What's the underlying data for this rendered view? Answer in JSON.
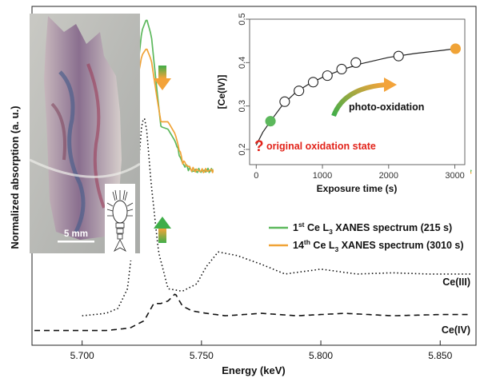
{
  "chart_data": [
    {
      "type": "line",
      "xlabel": "Energy (keV)",
      "ylabel": "Normalized absorption (a. u.)",
      "xlim": [
        5.679,
        5.865
      ],
      "x_ticks": [
        "5.700",
        "5.750",
        "5.800",
        "5.850"
      ],
      "x_tick_values": [
        5.7,
        5.75,
        5.8,
        5.85
      ],
      "y_ticks": "none",
      "scale_bar_label": "5 mm",
      "series": [
        {
          "name": "1st Ce L3 XANES spectrum (215 s)",
          "legend_parts": {
            "pre": "1",
            "sup": "st",
            "mid": " Ce L",
            "sub": "3",
            "post": " XANES spectrum (215 s)"
          },
          "color": "#5cb85c",
          "x": [
            5.68,
            5.7,
            5.71,
            5.715,
            5.72,
            5.723,
            5.725,
            5.727,
            5.729,
            5.731,
            5.733,
            5.736,
            5.739,
            5.742,
            5.746,
            5.75,
            5.76,
            5.78,
            5.8,
            5.82,
            5.84,
            5.863
          ],
          "values": [
            0.09,
            0.09,
            0.1,
            0.16,
            0.43,
            0.77,
            0.95,
            1.0,
            0.93,
            0.74,
            0.56,
            0.55,
            0.5,
            0.41,
            0.38,
            0.38,
            0.385,
            0.38,
            0.375,
            0.38,
            0.375,
            0.375
          ]
        },
        {
          "name": "14th Ce L3 XANES spectrum (3010 s)",
          "legend_parts": {
            "pre": "14",
            "sup": "th",
            "mid": " Ce L",
            "sub": "3",
            "post": " XANES spectrum (3010 s)"
          },
          "color": "#f0a336",
          "x": [
            5.68,
            5.7,
            5.71,
            5.715,
            5.72,
            5.723,
            5.725,
            5.727,
            5.729,
            5.731,
            5.733,
            5.736,
            5.739,
            5.742,
            5.746,
            5.75,
            5.76,
            5.78,
            5.8,
            5.82,
            5.84,
            5.863
          ],
          "values": [
            0.095,
            0.095,
            0.105,
            0.17,
            0.45,
            0.74,
            0.85,
            0.88,
            0.83,
            0.7,
            0.58,
            0.58,
            0.53,
            0.42,
            0.385,
            0.38,
            0.385,
            0.38,
            0.375,
            0.38,
            0.375,
            0.375
          ]
        },
        {
          "name": "Ce(III)",
          "color": "#111111",
          "dash": "dotted",
          "x": [
            5.7,
            5.71,
            5.715,
            5.719,
            5.722,
            5.724,
            5.725,
            5.726,
            5.727,
            5.729,
            5.732,
            5.736,
            5.742,
            5.748,
            5.752,
            5.757,
            5.765,
            5.775,
            5.785,
            5.8,
            5.815,
            5.83,
            5.845,
            5.863
          ],
          "values": [
            -0.21,
            -0.2,
            -0.18,
            -0.1,
            0.15,
            0.45,
            0.57,
            0.6,
            0.55,
            0.32,
            0.05,
            -0.1,
            -0.11,
            -0.08,
            -0.01,
            0.05,
            0.035,
            0.0,
            -0.04,
            -0.02,
            -0.04,
            -0.035,
            -0.04,
            -0.04
          ]
        },
        {
          "name": "Ce(IV)",
          "color": "#111111",
          "dash": "dashed",
          "x": [
            5.68,
            5.71,
            5.72,
            5.726,
            5.73,
            5.733,
            5.736,
            5.739,
            5.742,
            5.746,
            5.752,
            5.76,
            5.775,
            5.79,
            5.81,
            5.83,
            5.85,
            5.863
          ],
          "values": [
            -0.27,
            -0.27,
            -0.26,
            -0.23,
            -0.16,
            -0.16,
            -0.15,
            -0.12,
            -0.17,
            -0.19,
            -0.2,
            -0.21,
            -0.2,
            -0.21,
            -0.2,
            -0.21,
            -0.205,
            -0.205
          ]
        }
      ],
      "annotations": [
        "Ce(III)",
        "Ce(IV)"
      ]
    },
    {
      "type": "scatter",
      "xlabel": "Exposure time (s)",
      "ylabel": "[Ce(IV)]",
      "xlim": [
        -100,
        3150
      ],
      "ylim": [
        0.165,
        0.5
      ],
      "x_ticks": [
        "0",
        "1000",
        "2000",
        "3000"
      ],
      "x_tick_values": [
        0,
        1000,
        2000,
        3000
      ],
      "y_ticks": [
        "0.2",
        "0.3",
        "0.4",
        "0.5"
      ],
      "y_tick_values": [
        0.2,
        0.3,
        0.4,
        0.5
      ],
      "points": {
        "x": [
          215,
          430,
          645,
          860,
          1075,
          1290,
          1505,
          2150,
          3010
        ],
        "y": [
          0.265,
          0.31,
          0.335,
          0.355,
          0.37,
          0.385,
          0.4,
          0.415,
          0.432
        ]
      },
      "first_point_color": "#5cb85c",
      "last_point_color": "#f0a336",
      "fit": {
        "x": [
          0,
          100,
          215,
          400,
          600,
          800,
          1000,
          1300,
          1600,
          2000,
          2400,
          2800,
          3010
        ],
        "y": [
          0.21,
          0.24,
          0.265,
          0.303,
          0.332,
          0.351,
          0.366,
          0.384,
          0.398,
          0.412,
          0.421,
          0.428,
          0.432
        ]
      },
      "annotations": {
        "photo_oxidation": "photo-oxidation",
        "question_mark": "?",
        "original_state": "original oxidation state"
      }
    }
  ]
}
